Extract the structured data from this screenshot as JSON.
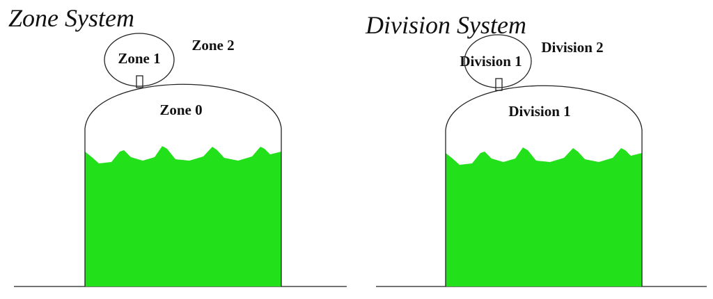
{
  "panels": [
    {
      "title": "Zone System",
      "labels": [
        "Zone 1",
        "Zone 2",
        "Zone 0"
      ]
    },
    {
      "title": "Division System",
      "labels": [
        "Division 1",
        "Division 2",
        "Division 1"
      ]
    }
  ]
}
